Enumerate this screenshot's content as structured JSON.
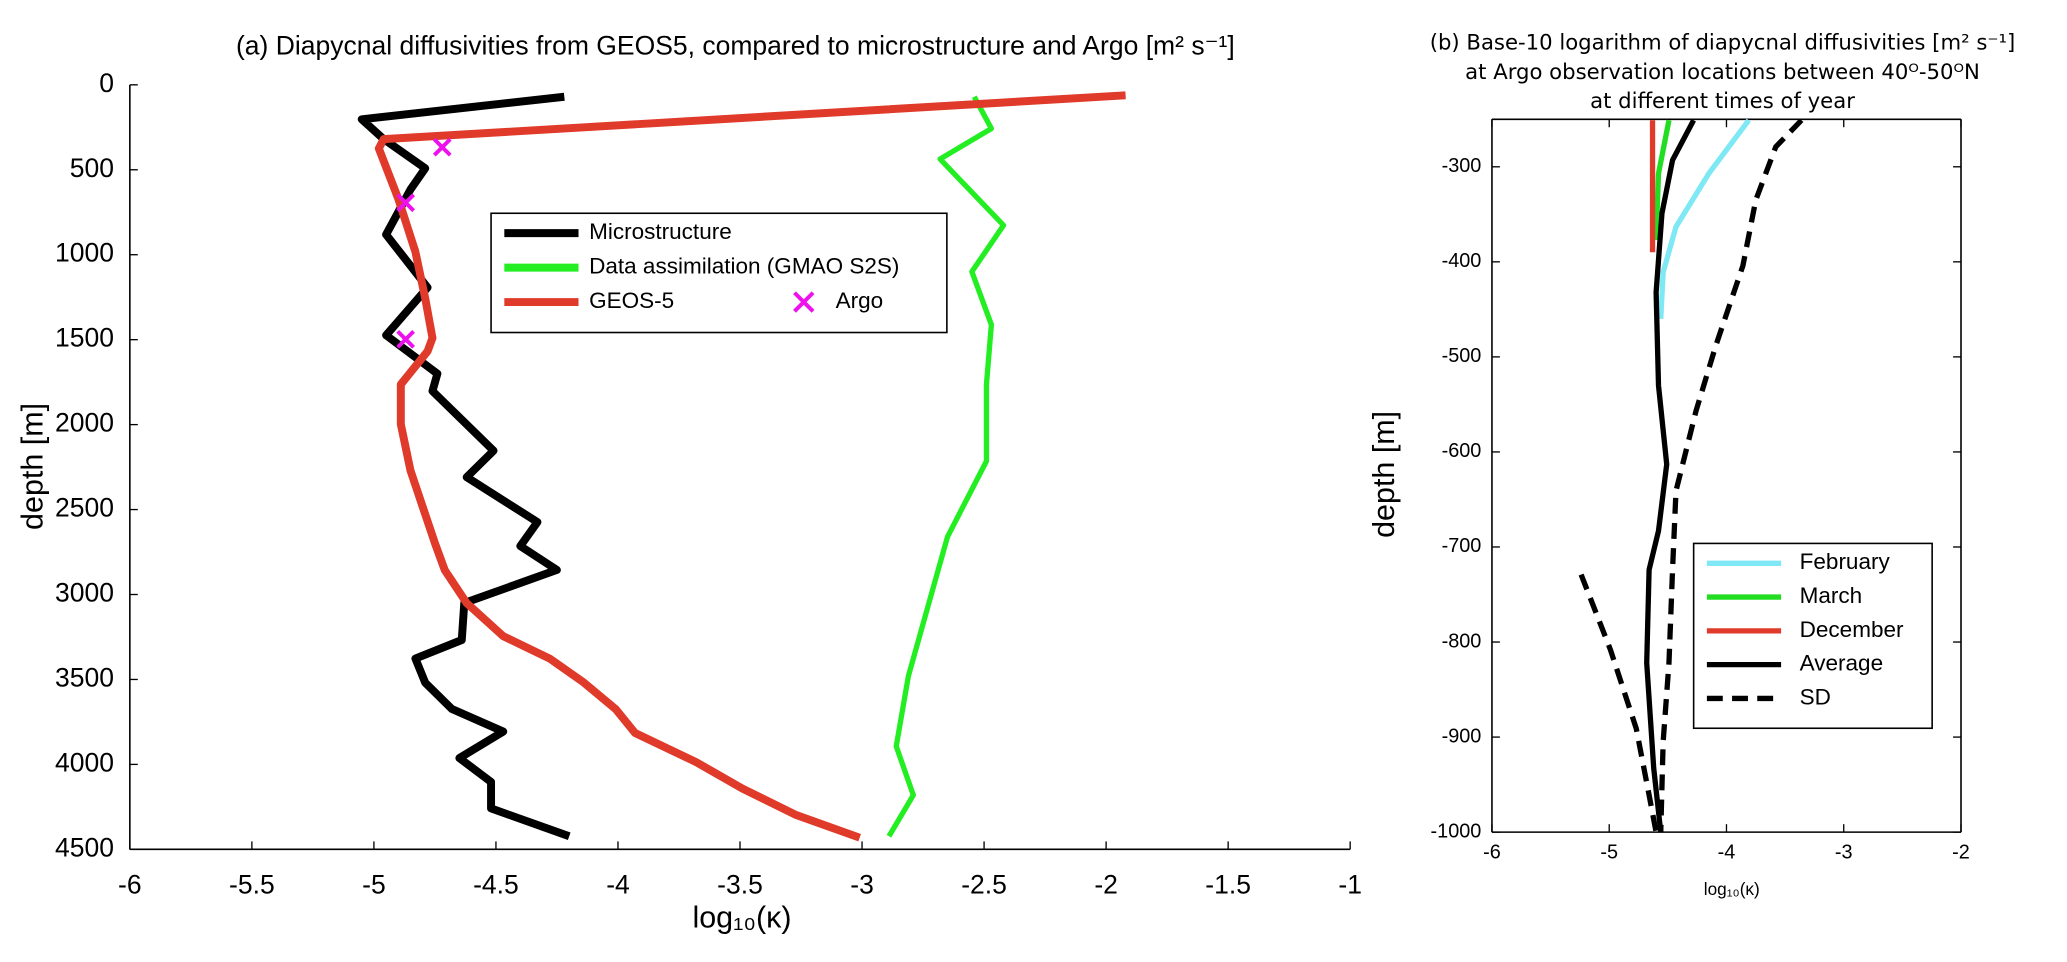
{
  "chart_data": [
    {
      "type": "line",
      "title": "(a) Diapycnal diffusivities from GEOS5, compared to microstructure and Argo [m² s⁻¹]",
      "xlabel": "log₁₀(κ)",
      "ylabel": "depth [m]",
      "xlim": [
        -6,
        -1
      ],
      "xticks": [
        -6,
        -5.5,
        -5,
        -4.5,
        -4,
        -3.5,
        -3,
        -2.5,
        -2,
        -1.5,
        -1
      ],
      "ylim": [
        4500,
        0
      ],
      "yticks": [
        0,
        500,
        1000,
        1500,
        2000,
        2500,
        3000,
        3500,
        4000,
        4500
      ],
      "legend": "upper center",
      "series": [
        {
          "name": "Microstructure",
          "color": "#000000",
          "linestyle": "solid",
          "x": [
            -4.22,
            -5.05,
            -4.96,
            -4.79,
            -4.85,
            -4.95,
            -4.78,
            -4.95,
            -4.74,
            -4.76,
            -4.51,
            -4.62,
            -4.33,
            -4.4,
            -4.25,
            -4.63,
            -4.64,
            -4.83,
            -4.79,
            -4.68,
            -4.47,
            -4.65,
            -4.52,
            -4.52,
            -4.2
          ],
          "values": [
            70,
            203,
            320,
            491,
            616,
            881,
            1193,
            1474,
            1700,
            1802,
            2153,
            2309,
            2574,
            2715,
            2855,
            3050,
            3268,
            3377,
            3519,
            3674,
            3807,
            3963,
            4103,
            4259,
            4423
          ]
        },
        {
          "name": "Data assimilation (GMAO S2S)",
          "color": "#22ee22",
          "linestyle": "solid",
          "x": [
            -2.54,
            -2.47,
            -2.68,
            -2.42,
            -2.55,
            -2.47,
            -2.49,
            -2.49,
            -2.65,
            -2.81,
            -2.86,
            -2.79,
            -2.89
          ],
          "values": [
            70,
            257,
            437,
            827,
            1100,
            1412,
            1763,
            2215,
            2660,
            3479,
            3893,
            4181,
            4423
          ]
        },
        {
          "name": "GEOS-5",
          "color": "#e03a2a",
          "linestyle": "solid",
          "x": [
            -1.92,
            -4.96,
            -4.98,
            -4.9,
            -4.83,
            -4.79,
            -4.76,
            -4.78,
            -4.89,
            -4.89,
            -4.85,
            -4.75,
            -4.71,
            -4.62,
            -4.47,
            -4.28,
            -4.14,
            -4.01,
            -3.93,
            -3.68,
            -3.49,
            -3.27,
            -3.01
          ],
          "values": [
            62,
            320,
            374,
            671,
            983,
            1256,
            1490,
            1568,
            1763,
            1997,
            2270,
            2699,
            2855,
            3050,
            3245,
            3377,
            3518,
            3674,
            3815,
            3986,
            4142,
            4298,
            4431
          ]
        },
        {
          "name": "Argo",
          "color": "#ee11ee",
          "linestyle": "none",
          "marker": "x",
          "x": [
            -4.72,
            -4.87,
            -4.87
          ],
          "values": [
            367,
            694,
            1498
          ]
        }
      ]
    },
    {
      "type": "line",
      "title": [
        "(b) Base-10 logarithm of diapycnal diffusivities [m² s⁻¹]",
        "at Argo observation locations between 40ᴼ-50ᴼN",
        "at different times of year"
      ],
      "xlabel": "log₁₀(κ)",
      "ylabel": "depth [m]",
      "xlim": [
        -6,
        -2
      ],
      "xticks": [
        -6,
        -5,
        -4,
        -3,
        -2
      ],
      "ylim": [
        -1000,
        -250
      ],
      "yticks": [
        -1000,
        -900,
        -800,
        -700,
        -600,
        -500,
        -400,
        -300
      ],
      "legend": "lower right",
      "series": [
        {
          "name": "February",
          "color": "#7fe8f5",
          "linestyle": "solid",
          "x": [
            -3.81,
            -4.15,
            -4.43,
            -4.54,
            -4.56
          ],
          "values": [
            -251,
            -307,
            -363,
            -411,
            -460
          ]
        },
        {
          "name": "March",
          "color": "#22dd22",
          "linestyle": "solid",
          "x": [
            -4.49,
            -4.58,
            -4.6
          ],
          "values": [
            -251,
            -307,
            -377
          ]
        },
        {
          "name": "December",
          "color": "#e03a2a",
          "linestyle": "solid",
          "x": [
            -4.63,
            -4.63
          ],
          "values": [
            -251,
            -390
          ]
        },
        {
          "name": "Average",
          "color": "#000000",
          "linestyle": "solid",
          "x": [
            -4.28,
            -4.46,
            -4.55,
            -4.6,
            -4.58,
            -4.51,
            -4.58,
            -4.66,
            -4.68,
            -4.62,
            -4.56
          ],
          "values": [
            -251,
            -293,
            -349,
            -432,
            -530,
            -613,
            -683,
            -724,
            -822,
            -933,
            -1000
          ]
        },
        {
          "name": "SD",
          "color": "#000000",
          "linestyle": "dashed",
          "x": [
            -3.36,
            -3.58,
            -3.75,
            -3.86,
            -4.09,
            -4.26,
            -4.43,
            -4.46,
            -4.49,
            -4.54,
            -4.56,
            null,
            -5.24,
            -4.99,
            -4.77,
            -4.66,
            -4.6
          ],
          "values": [
            -251,
            -279,
            -335,
            -404,
            -488,
            -557,
            -641,
            -724,
            -822,
            -905,
            -1000,
            null,
            -729,
            -808,
            -891,
            -961,
            -1000
          ]
        }
      ]
    }
  ]
}
